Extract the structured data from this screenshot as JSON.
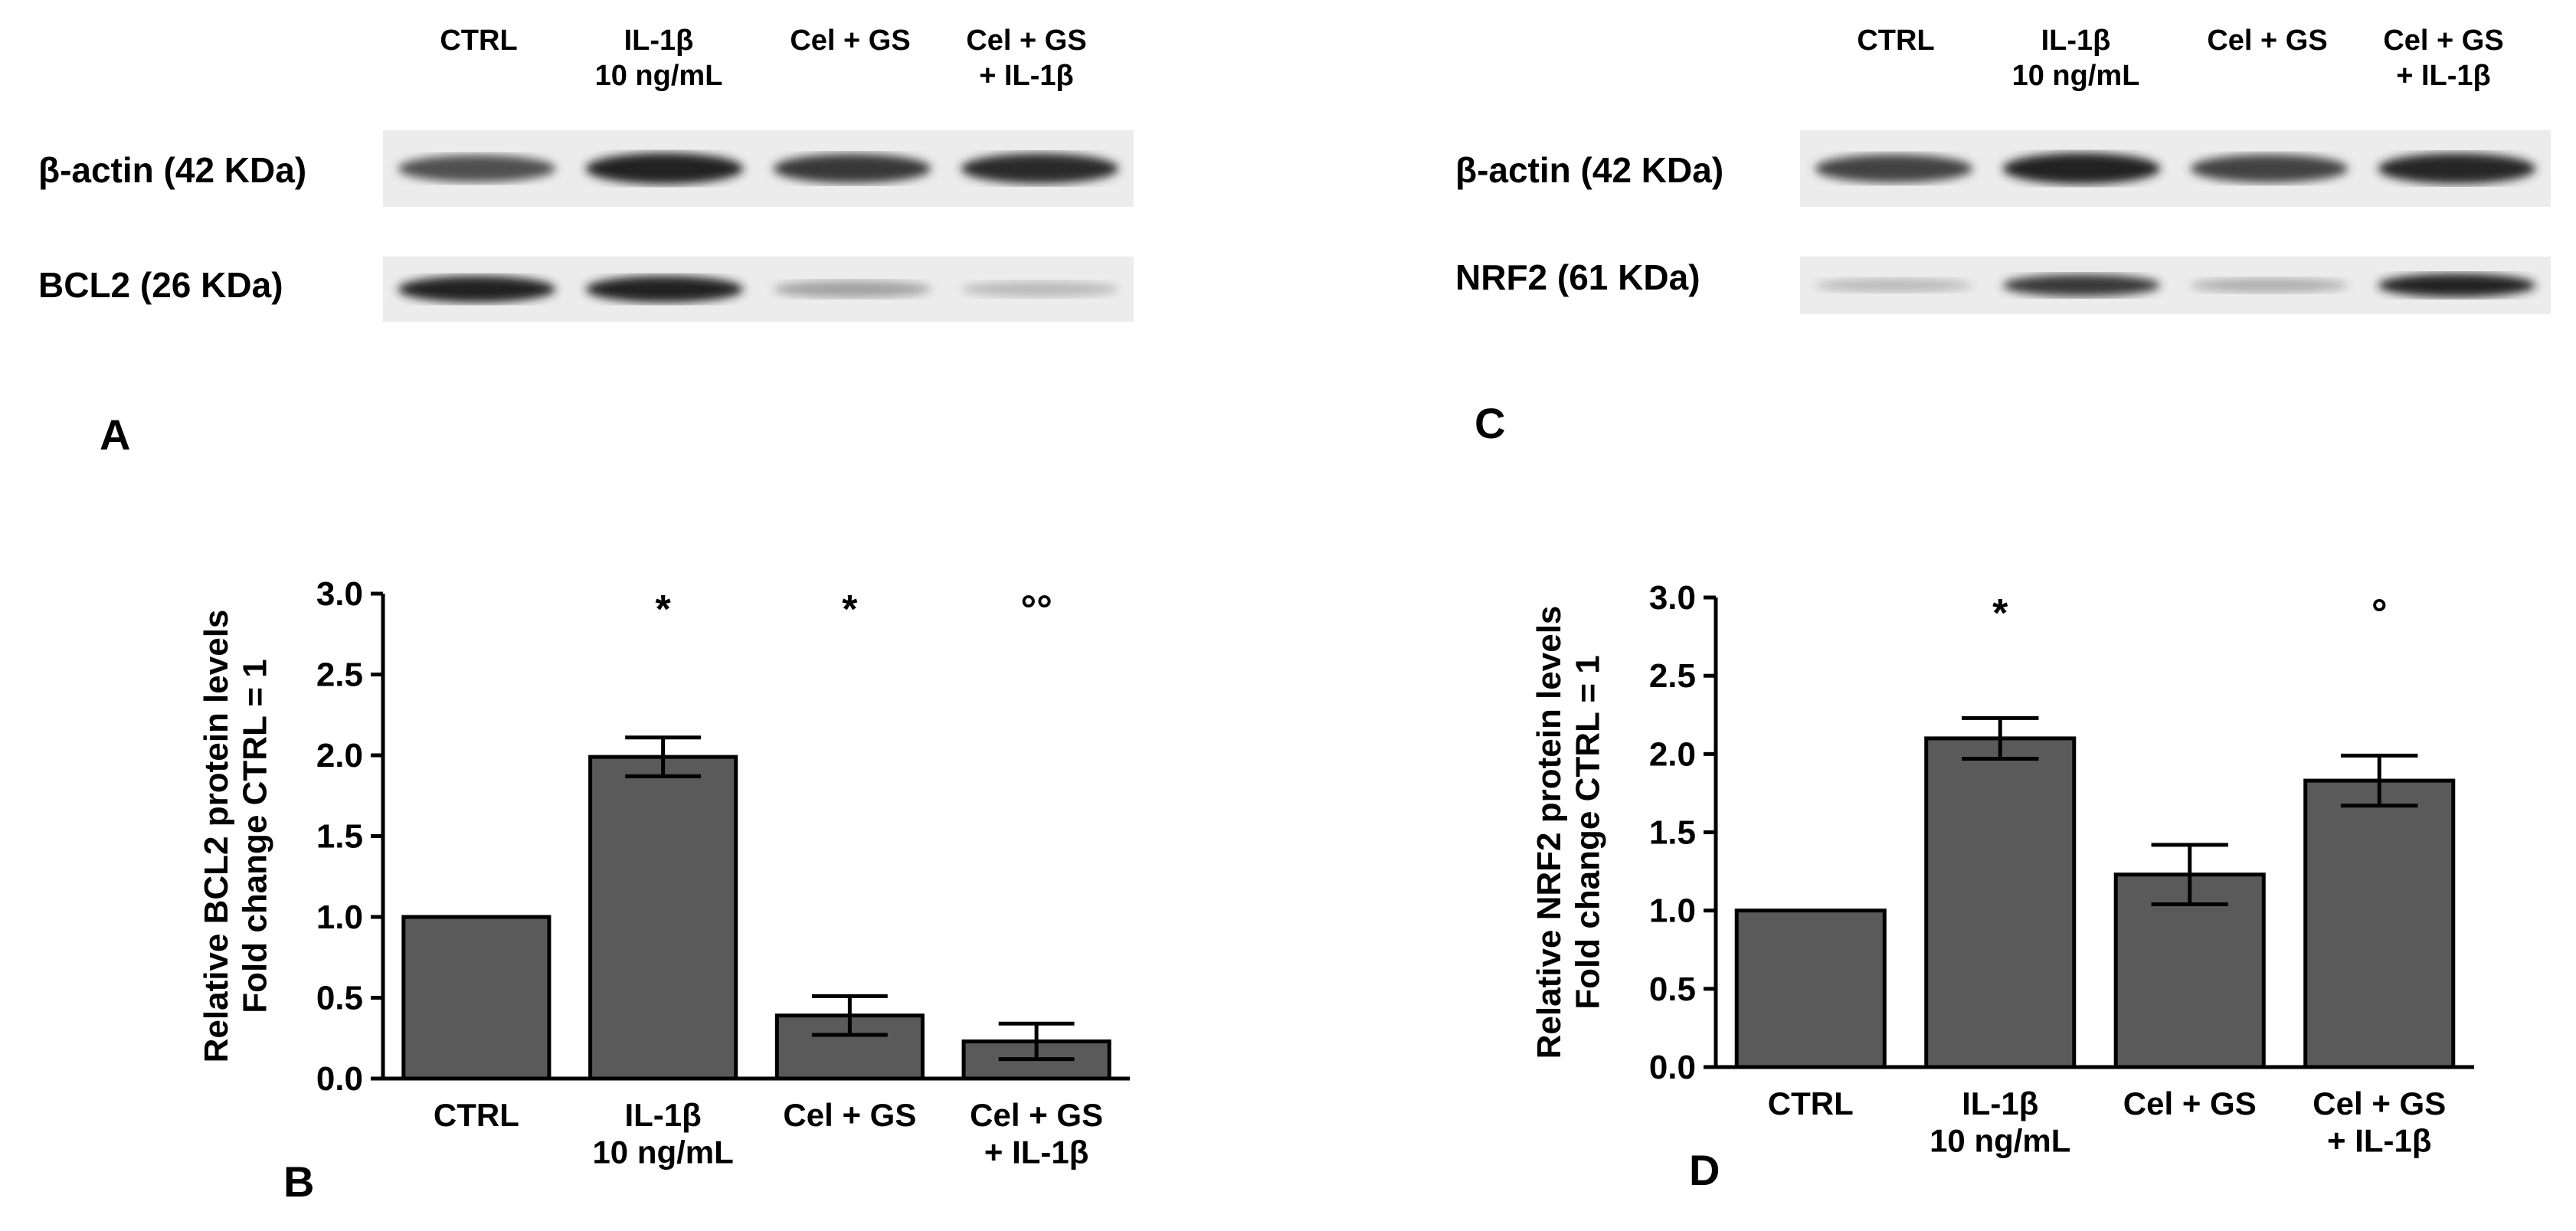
{
  "panels": {
    "A": {
      "letter": "A",
      "lanes": [
        "CTRL",
        "IL-1β\n10 ng/mL",
        "Cel + GS",
        "Cel + GS\n+ IL-1β"
      ],
      "rows": [
        {
          "label": "β-actin (42 KDa)",
          "intensities": [
            0.75,
            0.95,
            0.85,
            0.9
          ]
        },
        {
          "label": "BCL2 (26 KDa)",
          "intensities": [
            0.95,
            0.95,
            0.4,
            0.3
          ]
        }
      ]
    },
    "C": {
      "letter": "C",
      "lanes": [
        "CTRL",
        "IL-1β\n10 ng/mL",
        "Cel + GS",
        "Cel + GS\n+ IL-1β"
      ],
      "rows": [
        {
          "label": "β-actin (42 KDa)",
          "intensities": [
            0.8,
            0.95,
            0.8,
            0.92
          ]
        },
        {
          "label": "NRF2 (61 KDa)",
          "intensities": [
            0.3,
            0.85,
            0.35,
            0.95
          ]
        }
      ]
    }
  },
  "chart_data": [
    {
      "panel": "B",
      "type": "bar",
      "categories": [
        "CTRL",
        "IL-1β\n10 ng/mL",
        "Cel + GS",
        "Cel + GS\n+ IL-1β"
      ],
      "values": [
        1.0,
        1.99,
        0.39,
        0.23
      ],
      "errors": [
        0,
        0.12,
        0.12,
        0.11
      ],
      "annotations": [
        "",
        "*",
        "*",
        "°°"
      ],
      "ylabel": "Relative BCL2 protein levels\nFold change CTRL = 1",
      "ylim": [
        0,
        3.0
      ],
      "yticks": [
        "0.0",
        "0.5",
        "1.0",
        "1.5",
        "2.0",
        "2.5",
        "3.0"
      ],
      "bar_color": "#5a5a5a"
    },
    {
      "panel": "D",
      "type": "bar",
      "categories": [
        "CTRL",
        "IL-1β\n10 ng/mL",
        "Cel + GS",
        "Cel + GS\n+ IL-1β"
      ],
      "values": [
        1.0,
        2.1,
        1.23,
        1.83
      ],
      "errors": [
        0,
        0.13,
        0.19,
        0.16
      ],
      "annotations": [
        "",
        "*",
        "",
        "°"
      ],
      "ylabel": "Relative NRF2 protein levels\nFold change CTRL = 1",
      "ylim": [
        0,
        3.0
      ],
      "yticks": [
        "0.0",
        "0.5",
        "1.0",
        "1.5",
        "2.0",
        "2.5",
        "3.0"
      ],
      "bar_color": "#5a5a5a"
    }
  ]
}
